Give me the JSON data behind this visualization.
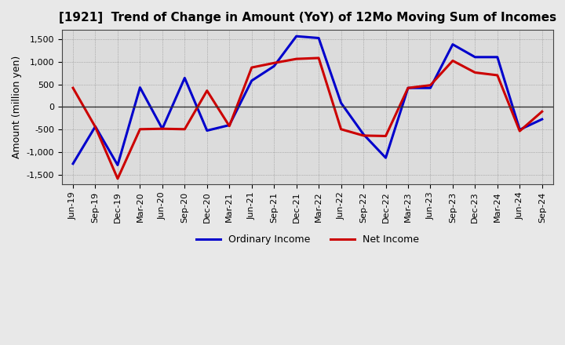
{
  "title": "[1921]  Trend of Change in Amount (YoY) of 12Mo Moving Sum of Incomes",
  "ylabel": "Amount (million yen)",
  "labels": [
    "Jun-19",
    "Sep-19",
    "Dec-19",
    "Mar-20",
    "Jun-20",
    "Sep-20",
    "Dec-20",
    "Mar-21",
    "Jun-21",
    "Sep-21",
    "Dec-21",
    "Mar-22",
    "Jun-22",
    "Sep-22",
    "Dec-22",
    "Mar-23",
    "Jun-23",
    "Sep-23",
    "Dec-23",
    "Mar-24",
    "Jun-24",
    "Sep-24"
  ],
  "ordinary_income": [
    -1250,
    -430,
    -1280,
    430,
    -480,
    640,
    -520,
    -400,
    580,
    900,
    1560,
    1520,
    90,
    -600,
    -1120,
    420,
    420,
    1380,
    1100,
    1100,
    -500,
    -270
  ],
  "net_income": [
    420,
    -440,
    -1580,
    -490,
    -480,
    -490,
    360,
    -420,
    870,
    970,
    1060,
    1080,
    -490,
    -630,
    -640,
    420,
    480,
    1020,
    760,
    700,
    -530,
    -100
  ],
  "ordinary_income_color": "#0000cc",
  "net_income_color": "#cc0000",
  "ylim": [
    -1700,
    1700
  ],
  "yticks": [
    -1500,
    -1000,
    -500,
    0,
    500,
    1000,
    1500
  ],
  "background_color": "#e8e8e8",
  "plot_background": "#dcdcdc",
  "grid_color": "#888888",
  "legend_ordinary": "Ordinary Income",
  "legend_net": "Net Income",
  "line_width": 2.2,
  "title_fontsize": 11,
  "axis_fontsize": 8,
  "ylabel_fontsize": 9
}
